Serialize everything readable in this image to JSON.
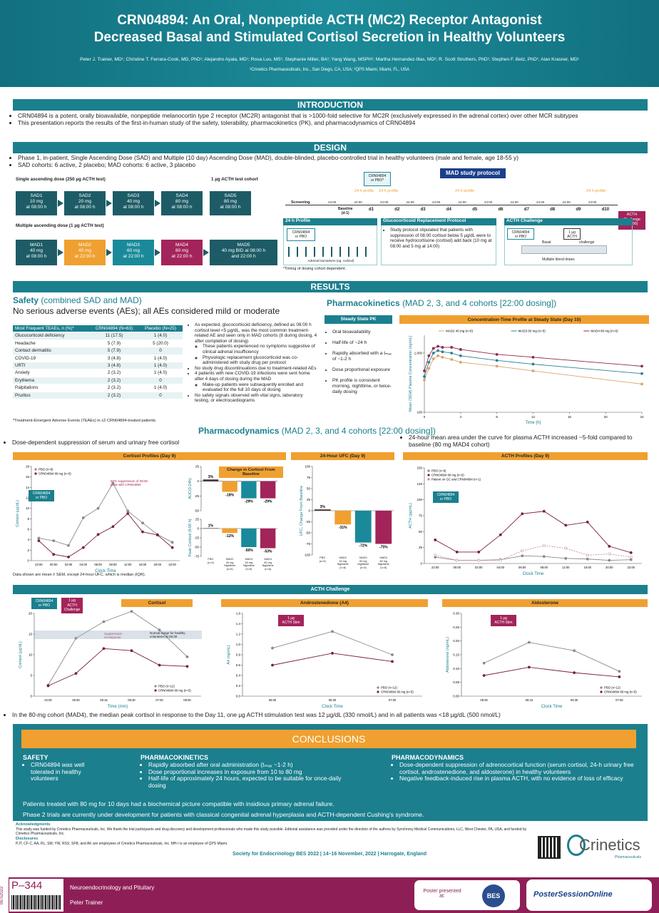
{
  "header": {
    "title_1": "CRN04894: An Oral, Nonpeptide ACTH (MC2) Receptor Antagonist",
    "title_2": "Decreased Basal and Stimulated Cortisol Secretion in Healthy Volunteers",
    "authors": "Peter J. Trainer, MD¹; Christine T. Ferrara-Cook, MD, PhD¹; Alejandro Ayala, MD¹; Rosa Luo, MS¹; Stephanie Miller, BA¹; Yang Wang, MSPH¹; Martha Hernandez-Illas, MD²; R. Scott Struthers, PhD¹; Stephen F. Betz, PhD¹; Alan Krasner, MD¹",
    "affiliations": "¹Crinetics Pharmaceuticals, Inc., San Diego, CA, USA; ²QPS Miami, Miami, FL, USA"
  },
  "intro": {
    "heading": "INTRODUCTION",
    "bullets": [
      "CRN04894 is a potent, orally bioavailable, nonpeptide melanocortin type 2 receptor (MC2R) antagonist that is >1000-fold selective for MC2R (exclusively expressed in the adrenal cortex) over other MCR subtypes",
      "This presentation reports the results of the first-in-human study of the safety, tolerability, pharmacokinetics (PK), and pharmacodynamics of CRN04894"
    ]
  },
  "design": {
    "heading": "DESIGN",
    "bullets": [
      "Phase 1, in-patient, Single Ascending Dose (SAD) and Multiple (10 day) Ascending Dose (MAD), double-blinded, placebo-controlled trial in healthy volunteers (male and female, age 18-55 y)",
      "SAD cohorts: 6 active, 2 placebo; MAD cohorts: 6 active, 3 placebo"
    ],
    "sad_label": "Single ascending dose (250 µg ACTH test)",
    "acth_cohort_label": "1 µg ACTH test cohort",
    "mad_label": "Multiple ascending dose (1 µg ACTH test)",
    "sad": [
      "SAD1\n10 mg\nat 08:00 h",
      "SAD2\n20 mg\nat 08:00 h",
      "SAD3\n40 mg\nat 08:00 h",
      "SAD4\n80 mg\nat 08:00 h",
      "SAD5\n80 mg\nat 08:00 h"
    ],
    "mad": [
      "MAD1\n40 mg\nat 08:00 h",
      "MAD2\n40 mg\nat 22:00 h",
      "MAD3\n60 mg\nat 22:00 h",
      "MAD4\n80 mg\nat 22:00 h",
      "MAD5\n40 mg BID at 08:00 h\nand 22:00 h"
    ],
    "protocol": {
      "title": "MAD study protocol",
      "dose_box": "CRN04894\nor PBO*",
      "screening": "Screening",
      "baseline": "Baseline\n(d-1)",
      "days": [
        "d1",
        "d2",
        "d3",
        "d4",
        "d5",
        "d6",
        "d7",
        "d8",
        "d9",
        "d10"
      ],
      "times": [
        "24:00",
        "24:00",
        "24:00",
        "24:00",
        "24:00",
        "24:00",
        "24:00",
        "24:00",
        "24:00",
        "24:00",
        "24:00"
      ],
      "profiles": [
        "24 h profile",
        "24 h profile",
        "24 h profile",
        "24 h profile"
      ],
      "challenge": "ACTH\nChallenge\n(08:00)",
      "profile_box": {
        "title": "24 h Profile",
        "dose": "CRN04894\nor PBO",
        "note": "Adrenal biomarkers (eg, cortisol)"
      },
      "gc_box": {
        "title": "Glucocorticoid Replacement Protocol",
        "text": "Study protocol stipulated that patients with suppression of 08:00 cortisol below 5 µg/dL were to receive hydrocortisone (cortisol) add back (10 mg at 08:00 and 5 mg at 14:00)"
      },
      "acth_box": {
        "title": "ACTH Challenge",
        "dose": "CRN04894\nor PBO",
        "acth": "1 µg\nACTH",
        "basal": "Basal",
        "challenge": "challenge",
        "draws": "Multiple blood draws"
      },
      "footnote": "*Timing of dosing cohort dependent."
    }
  },
  "results": {
    "heading": "RESULTS"
  },
  "safety": {
    "heading": "Safety",
    "heading_note": "(combined SAD and MAD)",
    "subheading": "No serious adverse events (AEs); all AEs considered mild or moderate",
    "table": {
      "headers": [
        "Most Frequent TEAEs, n (%)*",
        "CRN04894 (N=63)",
        "Placebo (N=25)"
      ],
      "rows": [
        [
          "Glucocorticoid deficiency",
          "11 (17.5)",
          "1 (4.0)"
        ],
        [
          "Headache",
          "5 (7.9)",
          "5 (20.0)"
        ],
        [
          "Contact dermatitis",
          "5 (7.9)",
          "0"
        ],
        [
          "COVID-19",
          "3 (4.8)",
          "1 (4.0)"
        ],
        [
          "URTI",
          "3 (4.8)",
          "1 (4.0)"
        ],
        [
          "Anxiety",
          "2 (3.2)",
          "1 (4.0)"
        ],
        [
          "Erythema",
          "2 (3.2)",
          "0"
        ],
        [
          "Palpitations",
          "2 (3.2)",
          "1 (4.0)"
        ],
        [
          "Pruritus",
          "2 (3.2)",
          "0"
        ]
      ]
    },
    "footnote": "*Treatment-Emergent Adverse Events (TEAEs) in ≤2 CRN04894-treated patients.",
    "bullets": [
      {
        "text": "As expected, glucocorticoid deficiency, defined as 08:00 h cortisol level <5 µg/dL, was the most common treatment-related AE and seen only in MAD cohorts (8 during dosing, 4 after completion of dosing)",
        "sub": [
          "These patients experienced no symptoms suggestive of clinical adrenal insufficiency",
          "Physiologic replacement glucocorticoid was co-administered with study drug per protocol"
        ]
      },
      {
        "text": "No study drug discontinuations due to treatment-related AEs"
      },
      {
        "text": "4 patients with new COVID-19 infections were sent home after 4 days of dosing during the MAD",
        "sub": [
          "Make-up patients were subsequently enrolled and evaluated for the full 10 days of dosing"
        ]
      },
      {
        "text": "No safety signals observed with vital signs, laboratory testing, or electrocardiograms"
      }
    ]
  },
  "pk": {
    "heading": "Pharmacokinetics",
    "heading_note": "(MAD 2, 3, and 4 cohorts [22:00 dosing])",
    "ss_title": "Steady State PK",
    "ss_bullets": [
      "Oral bioavailability",
      "Half-life of ~24 h",
      "Rapidly absorbed with a tₘₐₓ of ~1-2 h",
      "Dose proportional exposure",
      "PK profile is consistent morning, nighttime, or twice-daily dosing"
    ],
    "ct": {
      "title": "Concentration-Time Profile at Steady State (Day 10)",
      "ylabel": "Mean (SEM) Plasma Concentration (ng/mL)",
      "xlabel": "Time (h)",
      "log": true,
      "ylim": [
        100,
        2000
      ],
      "yticks": [
        100,
        {
          "value": 1000,
          "label": "1,000"
        }
      ],
      "xlim": [
        0,
        24
      ],
      "xticks": [
        0,
        4,
        8,
        12,
        16,
        20,
        24
      ],
      "x": [
        0,
        0.5,
        1,
        1.5,
        2,
        3,
        4,
        8,
        12,
        24
      ],
      "series": [
        {
          "name": "MAD2 40 mg (n=6)",
          "color": "#d9a36b",
          "values": [
            350,
            550,
            800,
            900,
            850,
            780,
            700,
            600,
            500,
            300
          ]
        },
        {
          "name": "MAD3 60 mg (n=5)",
          "color": "#2b7f95",
          "values": [
            400,
            700,
            1000,
            1100,
            1050,
            1000,
            900,
            750,
            650,
            450
          ]
        },
        {
          "name": "MAD4 80 mg (n=6)",
          "color": "#8e2a4c",
          "values": [
            500,
            900,
            1200,
            1300,
            1250,
            1250,
            1150,
            950,
            850,
            600
          ]
        }
      ]
    }
  },
  "pd": {
    "heading": "Pharmacodynamics",
    "heading_note": "(MAD 2, 3, and 4 cohorts [22:00 dosing])",
    "bullet_left": "Dose-dependent suppression of serum and urinary free cortisol",
    "bullet_right": "24-hour mean area under the curve for plasma ACTH increased ~5-fold compared to baseline (80 mg MAD4 cohort)",
    "note": "Data shown are mean ± SEM, except 24-hour UFC, which is median (IQR).",
    "cortisol_profiles": {
      "title": "Cortisol Profiles (Day 9)",
      "ylabel": "Cortisol (µg/dL)",
      "xlabel": "Clock Time",
      "ylim": [
        0,
        18
      ],
      "yticks": [
        0,
        2,
        4,
        6,
        8,
        10,
        12,
        14,
        16,
        18
      ],
      "categories": [
        "22:00",
        "00:00",
        "02:00",
        "04:00",
        "06:00",
        "08:00",
        "12:00",
        "16:00",
        "20:00",
        "22:00"
      ],
      "annotations": [
        "CRN04894\nor PBO",
        "55% suppression of 08:00 peak with CRN04894"
      ],
      "series": [
        {
          "name": "PBO (n=9)",
          "color": "#8a8a8a",
          "values": [
            4.3,
            3.8,
            2.9,
            8.2,
            10.0,
            14.8,
            9.5,
            7.2,
            5.0,
            3.5
          ]
        },
        {
          "name": "CRN04894 80 mg (n=6)",
          "color": "#7a1f3d",
          "values": [
            3.8,
            1.2,
            0.7,
            2.5,
            5.0,
            6.5,
            9.0,
            5.5,
            4.9,
            2.5
          ]
        }
      ]
    },
    "change": {
      "title": "Change in Cortisol From Baseline",
      "auc": {
        "ylabel": "AUC(0-24h)",
        "ylim": [
          -50,
          25
        ],
        "yticks": [
          25,
          0,
          -25,
          -50
        ],
        "values": [
          3,
          -18,
          -29,
          -29
        ],
        "value_labels": [
          "3%",
          "-18%",
          "-29%",
          "-29%"
        ],
        "colors": [
          "#4a3a35",
          "#f0a030",
          "#1a8a9a",
          "#a3245a"
        ]
      },
      "peak": {
        "ylabel": "Peak Cortisol (8:00 h)",
        "ylim": [
          -75,
          25
        ],
        "yticks": [
          25,
          0,
          -25,
          -50,
          -75
        ],
        "values": [
          1,
          -12,
          -50,
          -53
        ],
        "value_labels": [
          "1%",
          "-12%",
          "-50%",
          "-53%"
        ],
        "colors": [
          "#4a3a35",
          "#f0a030",
          "#1a8a9a",
          "#a3245a"
        ],
        "categories": [
          "PBO\n(n=9)",
          "MAD2\n40 mg\nNighttime\n(n=6)",
          "MAD3\n60 mg\nNighttime\n(n=5)",
          "MAD4\n80 mg\nNighttime\n(n=6)"
        ]
      }
    },
    "ufc": {
      "title": "24-Hour UFC (Day 9)",
      "ylabel": "UFC, Change From Baseline",
      "ylim": [
        -100,
        100
      ],
      "yticks": [
        100,
        75,
        50,
        25,
        0,
        -25,
        -50,
        -75,
        -100
      ],
      "values": [
        3,
        -31,
        -72,
        -75
      ],
      "value_labels": [
        "3%",
        "-31%",
        "-72%",
        "-75%"
      ],
      "colors": [
        "#4a3a35",
        "#f0a030",
        "#1a8a9a",
        "#a3245a"
      ],
      "categories": [
        "PBO\n(n=9)",
        "MAD2\n40 mg\nNighttime\n(n=6)",
        "MAD3\n60 mg\nNighttime\n(n=5)",
        "MAD4\n80 mg\nNighttime\n(n=6)"
      ]
    },
    "acth_profiles": {
      "title": "ACTH Profiles (Day 9)",
      "ylabel": "ACTH (pg/mL)",
      "xlabel": "Clock Time",
      "ylim": [
        0,
        150
      ],
      "yticks": [
        0,
        25,
        50,
        75,
        100,
        125,
        150
      ],
      "categories": [
        "22:00",
        "00:00",
        "02:00",
        "04:00",
        "06:00",
        "08:00",
        "12:00",
        "16:00",
        "20:00",
        "22:00"
      ],
      "annotations": [
        "CRN04894\nor PBO"
      ],
      "series": [
        {
          "name": "PBO (n=9)",
          "color": "#8a8a8a",
          "values": [
            10,
            5,
            5,
            6,
            12,
            11,
            8,
            7,
            5,
            6
          ]
        },
        {
          "name": "CRN04894 80 mg (n=6)",
          "color": "#7a1f3d",
          "values": [
            37,
            18,
            18,
            45,
            78,
            82,
            60,
            65,
            27,
            17
          ]
        },
        {
          "name": "Patient on GC and CRN04894 (n=1)",
          "color": "#c88a9e",
          "values": [
            13,
            5,
            5,
            5,
            20,
            28,
            24,
            13,
            15,
            10
          ]
        }
      ]
    }
  },
  "challenge": {
    "title": "ACTH Challenge",
    "cortisol": {
      "title": "Cortisol",
      "ylabel": "Cortisol (µg/dL)",
      "xlabel": "Time (min)",
      "ylim": [
        0,
        20
      ],
      "yticks": [
        0,
        5,
        10,
        15,
        20
      ],
      "categories": [
        "22:00",
        "06:00",
        "06:15",
        "06:30",
        "07:00",
        "08:00"
      ],
      "annotations": [
        "CRN04894\nor PBO",
        "1 µg\nACTH\nChallenge",
        "Suppression\nof response",
        "Normal range for healthy\nvolunteers at 06:30"
      ],
      "series": [
        {
          "name": "PBO (n=12)",
          "color": "#8a8a8a",
          "values": [
            2.7,
            14,
            18,
            20.5,
            16,
            9.5
          ]
        },
        {
          "name": "CRN04894 80 mg (n=5)",
          "color": "#7a1f3d",
          "values": [
            2.5,
            5.5,
            11.5,
            11,
            7.5,
            7.2
          ]
        }
      ]
    },
    "a4": {
      "title": "Androstenedione (A4)",
      "ylabel": "A4 (ng/mL)",
      "xlabel": "Clock Time",
      "ylim": [
        0,
        1.6
      ],
      "yticks": [
        {
          "value": 0,
          "label": "0.0"
        },
        0.2,
        0.4,
        0.6,
        0.8,
        {
          "value": 1,
          "label": "1.0"
        },
        1.2,
        1.4,
        1.6
      ],
      "categories": [
        "06:00",
        "06:30",
        "07:00"
      ],
      "annotations": [
        "1 µg\nACTH Stim"
      ],
      "series": [
        {
          "name": "PBO (n=12)",
          "color": "#8a8a8a",
          "values": [
            0.93,
            1.25,
            0.8
          ]
        },
        {
          "name": "CRN04894 80 mg (n=5)",
          "color": "#7a1f3d",
          "values": [
            0.6,
            0.83,
            0.67
          ]
        }
      ]
    },
    "aldo": {
      "title": "Aldosterone",
      "ylabel": "Aldosterone (ng/mL)",
      "xlabel": "Clock Time",
      "ylim": [
        0,
        0.3
      ],
      "yticks": [
        {
          "value": 0,
          "label": "0.00"
        },
        0.05,
        {
          "value": 0.1,
          "label": "0.10"
        },
        0.15,
        {
          "value": 0.2,
          "label": "0.20"
        },
        0.25,
        {
          "value": 0.3,
          "label": "0.30"
        }
      ],
      "categories": [
        "06:00",
        "06:15",
        "06:30",
        "07:00"
      ],
      "annotations": [
        "1 µg\nACTH Stim"
      ],
      "series": [
        {
          "name": "PBO (n=12)",
          "color": "#8a8a8a",
          "values": [
            0.12,
            0.195,
            0.165,
            0.09
          ]
        },
        {
          "name": "CRN04894 80 mg (n=5)",
          "color": "#7a1f3d",
          "values": [
            0.075,
            0.105,
            0.085,
            0.07
          ]
        }
      ]
    },
    "bullet": "In the 80-mg cohort (MAD4), the median peak cortisol in response to the Day 11, one µg ACTH stimulation test was 12 µg/dL (330 nmol/L) and in all patients was <18 µg/dL (500 nmol/L)"
  },
  "conclusions": {
    "heading": "CONCLUSIONS",
    "columns": [
      {
        "title": "SAFETY",
        "bullets": [
          "CRN04894 was well tolerated in healthy volunteers"
        ]
      },
      {
        "title": "PHARMACOKINETICS",
        "bullets": [
          "Rapidly absorbed after oral administration (tₘₐₓ ~1-2 h)",
          "Dose proportional increases in exposure from 10 to 80 mg",
          "Half-life of approximately 24 hours, expected to be suitable for once-daily dosing"
        ]
      },
      {
        "title": "PHARMACODYNAMICS",
        "bullets": [
          "Dose-dependent suppression of adrenocortical function (serum cortisol, 24-h urinary free cortisol, androstenedione, and aldosterone) in healthy volunteers",
          "Negative feedback-induced rise in plasma ACTH, with no evidence of loss of efficacy"
        ]
      }
    ],
    "statements": [
      "Patients treated with 80 mg for 10 days had a biochemical picture compatible with insidious primary adrenal failure.",
      "Phase 2 trials are currently under development for patients with classical congenital adrenal hyperplasia and ACTH-dependent Cushing's syndrome."
    ]
  },
  "footer": {
    "ack_title": "Acknowledgments",
    "ack": "This study was funded by Crinetics Pharmaceuticals, Inc. We thank the trial participants and drug discovery and development professionals who made this study possible. Editorial assistance was provided under the direction of the authors by Synchrony Medical Communications, LLC, West Chester, PA, USA, and funded by Crinetics Pharmaceuticals, Inc.",
    "disc_title": "Disclosures",
    "disc": "PJT, CF-C, AA, RL, SM, YW, RSS, SFB, and AK are employees of Crinetics Pharmaceuticals, Inc. MH-I is an employee of QPS Miami.",
    "society": "Society for Endocrinology BES 2022 | 14–16 November, 2022 | Harrogate, England",
    "logo": "Crinetics",
    "logo_sub": "Pharmaceuticals",
    "code": "BES2022",
    "poster_no": "P–344",
    "topic": "Neuroendocrinology and Pituitary",
    "presenter": "Peter Trainer",
    "presented": "Poster presented at:",
    "bes": "BES",
    "pso": "PosterSessionOnline"
  }
}
